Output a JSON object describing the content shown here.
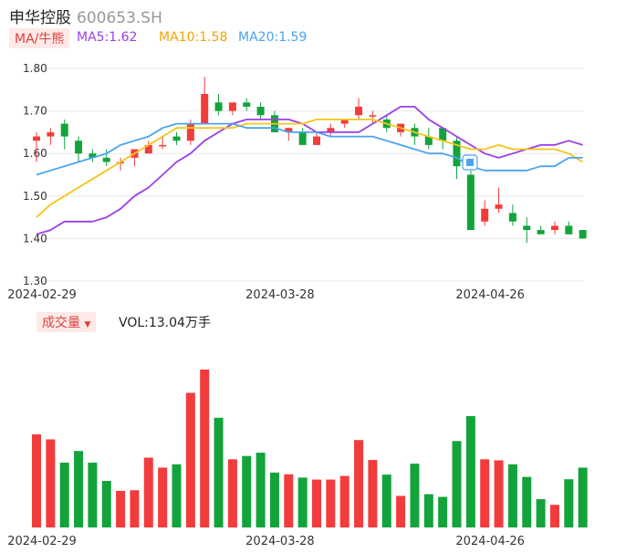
{
  "header": {
    "name": "申华控股",
    "code": "600653.SH"
  },
  "ma_legend": {
    "tag": "MA/牛熊",
    "ma5": "MA5:1.62",
    "ma10": "MA10:1.58",
    "ma20": "MA20:1.59"
  },
  "volume_legend": {
    "tag": "成交量",
    "value": "VOL:13.04万手"
  },
  "colors": {
    "up": "#f23c3c",
    "down": "#13a33b",
    "ma5": "#9b3ee8",
    "ma10": "#f5c518",
    "ma20": "#4aa3f0",
    "price_label": "#e0413a",
    "grid": "#e8e8e8"
  },
  "chart_data": [
    {
      "type": "candlestick",
      "y_ticks": [
        "1.80",
        "1.70",
        "1.60",
        "1.50",
        "1.40",
        "1.30"
      ],
      "ylim": [
        1.3,
        1.8
      ],
      "x_labels": [
        {
          "index": 0,
          "text": "2024-02-29"
        },
        {
          "index": 17,
          "text": "2024-03-28"
        },
        {
          "index": 32,
          "text": "2024-04-26"
        }
      ],
      "candles": [
        {
          "o": 1.63,
          "h": 1.65,
          "l": 1.58,
          "c": 1.64
        },
        {
          "o": 1.64,
          "h": 1.66,
          "l": 1.62,
          "c": 1.65
        },
        {
          "o": 1.67,
          "h": 1.68,
          "l": 1.61,
          "c": 1.64
        },
        {
          "o": 1.63,
          "h": 1.64,
          "l": 1.58,
          "c": 1.6
        },
        {
          "o": 1.6,
          "h": 1.61,
          "l": 1.58,
          "c": 1.59
        },
        {
          "o": 1.59,
          "h": 1.61,
          "l": 1.57,
          "c": 1.58
        },
        {
          "o": 1.58,
          "h": 1.59,
          "l": 1.56,
          "c": 1.58
        },
        {
          "o": 1.59,
          "h": 1.61,
          "l": 1.57,
          "c": 1.61
        },
        {
          "o": 1.6,
          "h": 1.63,
          "l": 1.6,
          "c": 1.62
        },
        {
          "o": 1.62,
          "h": 1.64,
          "l": 1.61,
          "c": 1.62
        },
        {
          "o": 1.64,
          "h": 1.65,
          "l": 1.62,
          "c": 1.63
        },
        {
          "o": 1.63,
          "h": 1.68,
          "l": 1.62,
          "c": 1.67
        },
        {
          "o": 1.67,
          "h": 1.78,
          "l": 1.67,
          "c": 1.74
        },
        {
          "o": 1.72,
          "h": 1.74,
          "l": 1.69,
          "c": 1.7
        },
        {
          "o": 1.7,
          "h": 1.72,
          "l": 1.69,
          "c": 1.72
        },
        {
          "o": 1.72,
          "h": 1.73,
          "l": 1.7,
          "c": 1.71
        },
        {
          "o": 1.71,
          "h": 1.72,
          "l": 1.68,
          "c": 1.69
        },
        {
          "o": 1.69,
          "h": 1.7,
          "l": 1.65,
          "c": 1.65
        },
        {
          "o": 1.65,
          "h": 1.66,
          "l": 1.63,
          "c": 1.66
        },
        {
          "o": 1.65,
          "h": 1.66,
          "l": 1.62,
          "c": 1.62
        },
        {
          "o": 1.62,
          "h": 1.65,
          "l": 1.62,
          "c": 1.64
        },
        {
          "o": 1.65,
          "h": 1.67,
          "l": 1.64,
          "c": 1.66
        },
        {
          "o": 1.67,
          "h": 1.68,
          "l": 1.66,
          "c": 1.68
        },
        {
          "o": 1.69,
          "h": 1.73,
          "l": 1.68,
          "c": 1.71
        },
        {
          "o": 1.69,
          "h": 1.7,
          "l": 1.67,
          "c": 1.69
        },
        {
          "o": 1.68,
          "h": 1.69,
          "l": 1.65,
          "c": 1.66
        },
        {
          "o": 1.65,
          "h": 1.67,
          "l": 1.64,
          "c": 1.67
        },
        {
          "o": 1.66,
          "h": 1.67,
          "l": 1.62,
          "c": 1.64
        },
        {
          "o": 1.64,
          "h": 1.66,
          "l": 1.61,
          "c": 1.62
        },
        {
          "o": 1.66,
          "h": 1.66,
          "l": 1.61,
          "c": 1.63
        },
        {
          "o": 1.63,
          "h": 1.64,
          "l": 1.54,
          "c": 1.57
        },
        {
          "o": 1.55,
          "h": 1.56,
          "l": 1.42,
          "c": 1.42
        },
        {
          "o": 1.44,
          "h": 1.49,
          "l": 1.43,
          "c": 1.47
        },
        {
          "o": 1.47,
          "h": 1.52,
          "l": 1.46,
          "c": 1.48
        },
        {
          "o": 1.46,
          "h": 1.48,
          "l": 1.43,
          "c": 1.44
        },
        {
          "o": 1.43,
          "h": 1.45,
          "l": 1.39,
          "c": 1.42
        },
        {
          "o": 1.42,
          "h": 1.43,
          "l": 1.41,
          "c": 1.41
        },
        {
          "o": 1.42,
          "h": 1.44,
          "l": 1.41,
          "c": 1.43
        },
        {
          "o": 1.43,
          "h": 1.44,
          "l": 1.41,
          "c": 1.41
        },
        {
          "o": 1.42,
          "h": 1.42,
          "l": 1.4,
          "c": 1.4
        }
      ],
      "ma5": [
        1.41,
        1.42,
        1.44,
        1.44,
        1.44,
        1.45,
        1.47,
        1.5,
        1.52,
        1.55,
        1.58,
        1.6,
        1.63,
        1.65,
        1.67,
        1.68,
        1.68,
        1.68,
        1.68,
        1.67,
        1.65,
        1.65,
        1.65,
        1.65,
        1.67,
        1.69,
        1.71,
        1.71,
        1.68,
        1.66,
        1.64,
        1.62,
        1.6,
        1.59,
        1.6,
        1.61,
        1.62,
        1.62,
        1.63,
        1.62
      ],
      "ma10": [
        1.45,
        1.48,
        1.5,
        1.52,
        1.54,
        1.56,
        1.58,
        1.6,
        1.62,
        1.64,
        1.66,
        1.66,
        1.66,
        1.66,
        1.66,
        1.67,
        1.67,
        1.67,
        1.67,
        1.67,
        1.68,
        1.68,
        1.68,
        1.68,
        1.68,
        1.67,
        1.66,
        1.65,
        1.64,
        1.63,
        1.62,
        1.61,
        1.61,
        1.62,
        1.61,
        1.61,
        1.61,
        1.61,
        1.6,
        1.58
      ],
      "ma20": [
        1.55,
        1.56,
        1.57,
        1.58,
        1.59,
        1.6,
        1.62,
        1.63,
        1.64,
        1.66,
        1.67,
        1.67,
        1.67,
        1.67,
        1.67,
        1.66,
        1.66,
        1.66,
        1.65,
        1.65,
        1.65,
        1.64,
        1.64,
        1.64,
        1.64,
        1.63,
        1.62,
        1.61,
        1.6,
        1.6,
        1.59,
        1.57,
        1.56,
        1.56,
        1.56,
        1.56,
        1.57,
        1.57,
        1.59,
        1.59
      ]
    },
    {
      "type": "bar",
      "series_ref": "candles",
      "volume": [
        28,
        26.5,
        19.5,
        23,
        19.5,
        14,
        11,
        11.2,
        21,
        18,
        19,
        40.5,
        47.5,
        33,
        20.5,
        21.5,
        22.5,
        16.5,
        16,
        15,
        14.4,
        14.4,
        15.5,
        26.3,
        20.3,
        15.9,
        9.5,
        19.2,
        10,
        9.2,
        26,
        33.5,
        20.5,
        20.2,
        19,
        15.2,
        8.5,
        6.8,
        14.5,
        18
      ]
    }
  ]
}
